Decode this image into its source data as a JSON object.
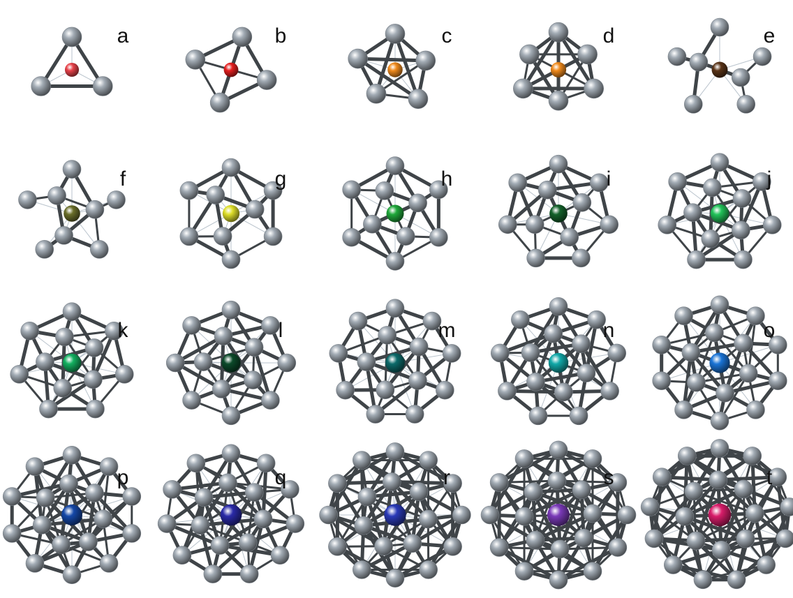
{
  "figure": {
    "panels": [
      {
        "label": "a",
        "vertices": 3,
        "center_color": "#e8424a"
      },
      {
        "label": "b",
        "vertices": 4,
        "center_color": "#e51f1f"
      },
      {
        "label": "c",
        "vertices": 5,
        "center_color": "#f08a1c"
      },
      {
        "label": "d",
        "vertices": 6,
        "center_color": "#f08a1c"
      },
      {
        "label": "e",
        "vertices": 7,
        "center_color": "#5a3418"
      },
      {
        "label": "f",
        "vertices": 8,
        "center_color": "#6a6e2a"
      },
      {
        "label": "g",
        "vertices": 9,
        "center_color": "#dede2a"
      },
      {
        "label": "h",
        "vertices": 10,
        "center_color": "#1fa83a"
      },
      {
        "label": "i",
        "vertices": 11,
        "center_color": "#13612a"
      },
      {
        "label": "j",
        "vertices": 12,
        "center_color": "#22c35a"
      },
      {
        "label": "k",
        "vertices": 12,
        "center_color": "#13b060"
      },
      {
        "label": "l",
        "vertices": 13,
        "center_color": "#0c4a2a"
      },
      {
        "label": "m",
        "vertices": 14,
        "center_color": "#0c6a6a"
      },
      {
        "label": "n",
        "vertices": 15,
        "center_color": "#11a8a8"
      },
      {
        "label": "o",
        "vertices": 16,
        "center_color": "#1a74d6"
      },
      {
        "label": "p",
        "vertices": 17,
        "center_color": "#1548a8"
      },
      {
        "label": "q",
        "vertices": 18,
        "center_color": "#2a2aa8"
      },
      {
        "label": "r",
        "vertices": 19,
        "center_color": "#2a3ab8"
      },
      {
        "label": "s",
        "vertices": 20,
        "center_color": "#7a3ab8"
      },
      {
        "label": "t",
        "vertices": 21,
        "center_color": "#d81d6a"
      }
    ],
    "vertex_color": "#a3acb5",
    "bond_color": "#3f4448"
  }
}
